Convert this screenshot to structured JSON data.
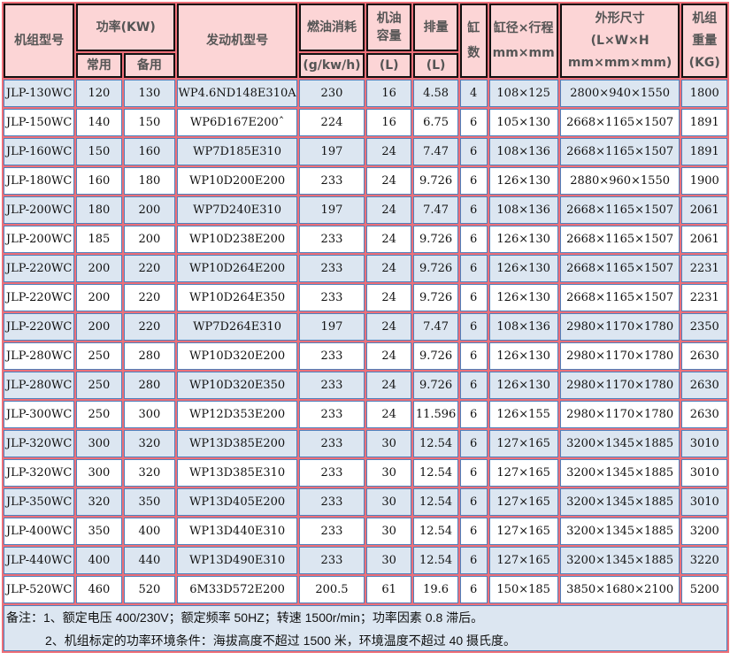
{
  "header": {
    "model": "机组型号",
    "power": "功率(KW)",
    "prime": "常用",
    "standby": "备用",
    "engine": "发动机型号",
    "fuel": "燃油消耗",
    "fuel_unit": "(g/kw/h)",
    "oil_1": "机油",
    "oil_2": "容量",
    "oil_unit": "(L)",
    "disp": "排量",
    "disp_unit": "(L)",
    "cyl_1": "缸",
    "cyl_2": "数",
    "bore_1": "缸径×行程",
    "bore_2": "mm×mm",
    "dim_1": "外形尺寸",
    "dim_2": "(L×W×H",
    "dim_3": "mm×mm×mm)",
    "wt_1": "机组",
    "wt_2": "重量",
    "wt_unit": "(KG)"
  },
  "rows": [
    [
      "JLP-130WC",
      "120",
      "130",
      "WP4.6ND148E310A",
      "230",
      "16",
      "4.58",
      "4",
      "108×125",
      "2800×940×1550",
      "1800"
    ],
    [
      "JLP-150WC",
      "140",
      "150",
      "WP6D167E200ˆ",
      "224",
      "16",
      "6.75",
      "6",
      "105×130",
      "2668×1165×1507",
      "1891"
    ],
    [
      "JLP-160WC",
      "150",
      "160",
      "WP7D185E310",
      "197",
      "24",
      "7.47",
      "6",
      "108×136",
      "2668×1165×1507",
      "1891"
    ],
    [
      "JLP-180WC",
      "160",
      "180",
      "WP10D200E200",
      "233",
      "24",
      "9.726",
      "6",
      "126×130",
      "2880×960×1550",
      "1900"
    ],
    [
      "JLP-200WC",
      "180",
      "200",
      "WP7D240E310",
      "197",
      "24",
      "7.47",
      "6",
      "108×136",
      "2668×1165×1507",
      "2061"
    ],
    [
      "JLP-200WC",
      "185",
      "200",
      "WP10D238E200",
      "233",
      "24",
      "9.726",
      "6",
      "126×130",
      "2668×1165×1507",
      "2061"
    ],
    [
      "JLP-220WC",
      "200",
      "220",
      "WP10D264E200",
      "233",
      "24",
      "9.726",
      "6",
      "126×130",
      "2668×1165×1507",
      "2231"
    ],
    [
      "JLP-220WC",
      "200",
      "220",
      "WP10D264E350",
      "233",
      "24",
      "9.726",
      "6",
      "126×130",
      "2668×1165×1507",
      "2231"
    ],
    [
      "JLP-220WC",
      "200",
      "220",
      "WP7D264E310",
      "197",
      "24",
      "7.47",
      "6",
      "108×136",
      "2980×1170×1780",
      "2350"
    ],
    [
      "JLP-280WC",
      "250",
      "280",
      "WP10D320E200",
      "233",
      "24",
      "9.726",
      "6",
      "126×130",
      "2980×1170×1780",
      "2630"
    ],
    [
      "JLP-280WC",
      "250",
      "280",
      "WP10D320E350",
      "233",
      "24",
      "9.726",
      "6",
      "126×130",
      "2980×1170×1780",
      "2630"
    ],
    [
      "JLP-300WC",
      "250",
      "300",
      "WP12D353E200",
      "233",
      "24",
      "11.596",
      "6",
      "126×155",
      "2980×1170×1780",
      "2630"
    ],
    [
      "JLP-320WC",
      "300",
      "320",
      "WP13D385E200",
      "233",
      "30",
      "12.54",
      "6",
      "127×165",
      "3200×1345×1885",
      "3010"
    ],
    [
      "JLP-320WC",
      "300",
      "320",
      "WP13D385E310",
      "233",
      "30",
      "12.54",
      "6",
      "127×165",
      "3200×1345×1885",
      "3010"
    ],
    [
      "JLP-350WC",
      "320",
      "350",
      "WP13D405E200",
      "233",
      "30",
      "12.54",
      "6",
      "127×165",
      "3200×1345×1885",
      "3010"
    ],
    [
      "JLP-400WC",
      "350",
      "400",
      "WP13D440E310",
      "233",
      "30",
      "12.54",
      "6",
      "127×165",
      "3200×1345×1885",
      "3200"
    ],
    [
      "JLP-440WC",
      "400",
      "440",
      "WP13D490E310",
      "233",
      "30",
      "12.54",
      "6",
      "127×165",
      "3200×1345×1885",
      "3220"
    ],
    [
      "JLP-520WC",
      "460",
      "520",
      "6M33D572E200",
      "200.5",
      "61",
      "19.6",
      "6",
      "150×185",
      "3850×1680×2100",
      "5200"
    ]
  ],
  "notes": {
    "line1": "备注：1、额定电压 400/230V；额定频率 50HZ；转速 1500r/min；功率因素 0.8 滞后。",
    "line2": "2、机组标定的功率环境条件：海拔高度不超过 1500 米，环境温度不超过 40 摄氏度。"
  },
  "colors": {
    "header_fill": "#fcd5d6",
    "row_blue": "#dce6f1",
    "grid": "#ee6f78",
    "cell_border": "#4f81bd"
  }
}
